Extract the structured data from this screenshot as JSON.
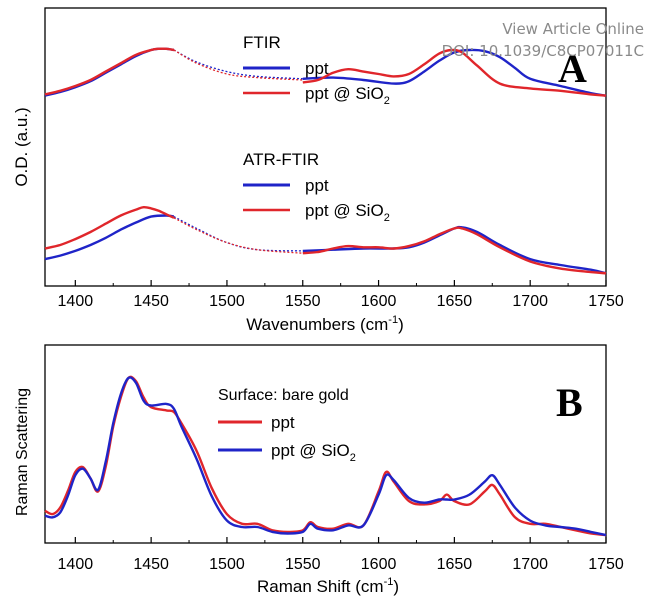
{
  "watermark": {
    "line1": "View Article Online",
    "line2": "DOI: 10.1039/C8CP07011C"
  },
  "colors": {
    "red": "#e0262b",
    "blue": "#1f24c8",
    "axis": "#000000"
  },
  "chart_data": [
    {
      "type": "line",
      "panel_label": "A",
      "xlabel": "Wavenumbers (cm",
      "xlabel_sup": "-1",
      "xlabel_end": ")",
      "ylabel": "O.D. (a.u.)",
      "xlim": [
        1380,
        1750
      ],
      "ylim": [
        0,
        1
      ],
      "xticks": [
        "1400",
        "1450",
        "1500",
        "1550",
        "1600",
        "1650",
        "1700",
        "1750"
      ],
      "grid": false,
      "legend_groups": [
        {
          "title": "FTIR",
          "entries": [
            {
              "label": "ppt",
              "color": "blue"
            },
            {
              "label": "ppt @ SiO",
              "sub": "2",
              "color": "red"
            }
          ]
        },
        {
          "title": "ATR-FTIR",
          "entries": [
            {
              "label": "ppt",
              "color": "blue"
            },
            {
              "label": "ppt @ SiO",
              "sub": "2",
              "color": "red"
            }
          ]
        }
      ],
      "series": [
        {
          "color": "blue",
          "style": "solid",
          "x": [
            1380,
            1390,
            1400,
            1410,
            1420,
            1430,
            1440,
            1450,
            1455,
            1460,
            1465
          ],
          "y": [
            0.62,
            0.65,
            0.69,
            0.74,
            0.81,
            0.88,
            0.95,
            1.0,
            1.01,
            1.01,
            1.0
          ]
        },
        {
          "color": "blue",
          "style": "dotted",
          "x": [
            1465,
            1480,
            1500,
            1520,
            1550
          ],
          "y": [
            1.0,
            0.9,
            0.82,
            0.78,
            0.76
          ]
        },
        {
          "color": "blue",
          "style": "solid",
          "x": [
            1550,
            1570,
            1590,
            1610,
            1620,
            1630,
            1640,
            1650,
            1660,
            1670,
            1680,
            1690,
            1700,
            1720,
            1740,
            1750
          ],
          "y": [
            0.76,
            0.77,
            0.75,
            0.72,
            0.74,
            0.82,
            0.91,
            0.98,
            1.0,
            0.99,
            0.94,
            0.85,
            0.76,
            0.7,
            0.64,
            0.62
          ]
        },
        {
          "color": "red",
          "style": "solid",
          "x": [
            1380,
            1390,
            1400,
            1410,
            1420,
            1430,
            1440,
            1450,
            1455,
            1460,
            1465
          ],
          "y": [
            0.63,
            0.66,
            0.7,
            0.75,
            0.82,
            0.89,
            0.96,
            1.0,
            1.01,
            1.01,
            1.0
          ]
        },
        {
          "color": "red",
          "style": "dotted",
          "x": [
            1465,
            1480,
            1500,
            1520,
            1550
          ],
          "y": [
            1.0,
            0.89,
            0.8,
            0.77,
            0.75
          ]
        },
        {
          "color": "red",
          "style": "solid",
          "x": [
            1550,
            1560,
            1570,
            1580,
            1590,
            1600,
            1610,
            1620,
            1630,
            1640,
            1648,
            1655,
            1665,
            1680,
            1700,
            1720,
            1740,
            1750
          ],
          "y": [
            0.73,
            0.75,
            0.81,
            0.84,
            0.82,
            0.8,
            0.78,
            0.8,
            0.88,
            0.97,
            1.0,
            0.98,
            0.87,
            0.72,
            0.68,
            0.66,
            0.63,
            0.62
          ]
        },
        {
          "color": "blue",
          "style": "solid",
          "x": [
            1380,
            1390,
            1400,
            1410,
            1420,
            1430,
            1440,
            1450,
            1460,
            1465
          ],
          "y": [
            0.16,
            0.19,
            0.23,
            0.28,
            0.34,
            0.41,
            0.47,
            0.52,
            0.53,
            0.52
          ]
        },
        {
          "color": "blue",
          "style": "dotted",
          "x": [
            1465,
            1480,
            1500,
            1520,
            1550
          ],
          "y": [
            0.52,
            0.42,
            0.3,
            0.24,
            0.23
          ]
        },
        {
          "color": "blue",
          "style": "solid",
          "x": [
            1550,
            1570,
            1590,
            1610,
            1620,
            1630,
            1640,
            1650,
            1655,
            1665,
            1680,
            1700,
            1720,
            1740,
            1750
          ],
          "y": [
            0.23,
            0.24,
            0.25,
            0.25,
            0.26,
            0.3,
            0.36,
            0.42,
            0.43,
            0.39,
            0.28,
            0.16,
            0.11,
            0.07,
            0.04
          ]
        },
        {
          "color": "red",
          "style": "solid",
          "x": [
            1380,
            1390,
            1400,
            1410,
            1420,
            1430,
            1440,
            1445,
            1450,
            1455,
            1460,
            1465
          ],
          "y": [
            0.25,
            0.28,
            0.33,
            0.39,
            0.46,
            0.53,
            0.58,
            0.6,
            0.59,
            0.57,
            0.54,
            0.51
          ]
        },
        {
          "color": "red",
          "style": "dotted",
          "x": [
            1465,
            1480,
            1500,
            1520,
            1550
          ],
          "y": [
            0.51,
            0.41,
            0.3,
            0.24,
            0.21
          ]
        },
        {
          "color": "red",
          "style": "solid",
          "x": [
            1550,
            1560,
            1570,
            1580,
            1590,
            1600,
            1610,
            1620,
            1630,
            1640,
            1650,
            1655,
            1665,
            1680,
            1700,
            1720,
            1740,
            1750
          ],
          "y": [
            0.21,
            0.22,
            0.25,
            0.27,
            0.26,
            0.26,
            0.25,
            0.27,
            0.31,
            0.37,
            0.42,
            0.42,
            0.37,
            0.26,
            0.14,
            0.08,
            0.05,
            0.04
          ]
        }
      ]
    },
    {
      "type": "line",
      "panel_label": "B",
      "xlabel": "Raman Shift (cm",
      "xlabel_sup": "-1",
      "xlabel_end": ")",
      "ylabel": "Raman Scattering",
      "xlim": [
        1380,
        1750
      ],
      "ylim": [
        0,
        1
      ],
      "xticks": [
        "1400",
        "1450",
        "1500",
        "1550",
        "1600",
        "1650",
        "1700",
        "1750"
      ],
      "grid": false,
      "legend_title": "Surface: bare gold",
      "legend_entries": [
        {
          "label": "ppt",
          "color": "red"
        },
        {
          "label": "ppt @ SiO",
          "sub": "2",
          "color": "blue"
        }
      ],
      "series": [
        {
          "color": "red",
          "style": "solid",
          "x": [
            1380,
            1385,
            1390,
            1395,
            1400,
            1405,
            1410,
            1415,
            1420,
            1425,
            1430,
            1435,
            1440,
            1445,
            1450,
            1460,
            1465,
            1470,
            1480,
            1490,
            1500,
            1510,
            1520,
            1530,
            1540,
            1550,
            1555,
            1560,
            1570,
            1580,
            1590,
            1600,
            1605,
            1610,
            1620,
            1630,
            1640,
            1645,
            1650,
            1660,
            1670,
            1675,
            1680,
            1690,
            1700,
            1710,
            1720,
            1730,
            1740,
            1750
          ],
          "y": [
            0.18,
            0.16,
            0.2,
            0.3,
            0.42,
            0.45,
            0.38,
            0.3,
            0.45,
            0.7,
            0.88,
            1.0,
            0.98,
            0.88,
            0.82,
            0.8,
            0.79,
            0.72,
            0.55,
            0.32,
            0.16,
            0.1,
            0.1,
            0.06,
            0.05,
            0.06,
            0.11,
            0.08,
            0.07,
            0.1,
            0.09,
            0.3,
            0.42,
            0.36,
            0.24,
            0.22,
            0.24,
            0.28,
            0.24,
            0.22,
            0.3,
            0.34,
            0.28,
            0.14,
            0.1,
            0.1,
            0.08,
            0.06,
            0.04,
            0.03
          ]
        },
        {
          "color": "blue",
          "style": "solid",
          "x": [
            1380,
            1385,
            1390,
            1395,
            1400,
            1405,
            1410,
            1415,
            1420,
            1425,
            1430,
            1435,
            1440,
            1445,
            1450,
            1460,
            1465,
            1470,
            1480,
            1490,
            1500,
            1510,
            1520,
            1530,
            1540,
            1550,
            1555,
            1560,
            1570,
            1580,
            1590,
            1600,
            1605,
            1610,
            1620,
            1630,
            1640,
            1645,
            1650,
            1660,
            1670,
            1675,
            1680,
            1690,
            1700,
            1710,
            1720,
            1730,
            1740,
            1750
          ],
          "y": [
            0.15,
            0.14,
            0.17,
            0.27,
            0.4,
            0.44,
            0.38,
            0.31,
            0.48,
            0.72,
            0.9,
            1.0,
            0.97,
            0.86,
            0.83,
            0.84,
            0.81,
            0.7,
            0.5,
            0.27,
            0.12,
            0.08,
            0.08,
            0.05,
            0.04,
            0.05,
            0.1,
            0.07,
            0.06,
            0.09,
            0.09,
            0.28,
            0.4,
            0.37,
            0.26,
            0.23,
            0.25,
            0.25,
            0.25,
            0.28,
            0.36,
            0.4,
            0.34,
            0.2,
            0.12,
            0.09,
            0.08,
            0.07,
            0.05,
            0.03
          ]
        }
      ]
    }
  ]
}
